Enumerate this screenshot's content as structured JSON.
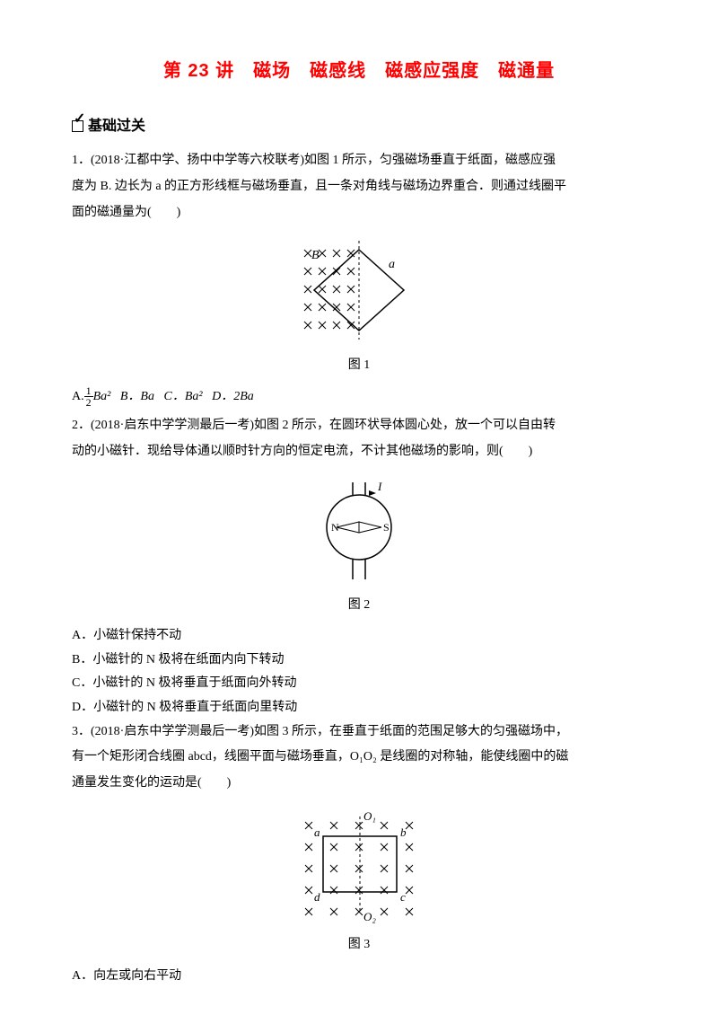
{
  "title": "第 23 讲　磁场　磁感线　磁感应强度　磁通量",
  "section_head": "基础过关",
  "q1": {
    "stem1": "1．(2018·江都中学、扬中中学等六校联考)如图 1 所示，匀强磁场垂直于纸面，磁感应强",
    "stem2": "度为 B. 边长为 a 的正方形线框与磁场垂直，且一条对角线与磁场边界重合．则通过线圈平",
    "stem3": "面的磁通量为(　　)",
    "fig_cap": "图 1",
    "optA_pre": "A.",
    "optA_post": "Ba²",
    "optB": "B．Ba",
    "optC": "C．Ba²",
    "optD": "D．2Ba",
    "frac_n": "1",
    "frac_d": "2"
  },
  "q2": {
    "stem1": "2．(2018·启东中学学测最后一考)如图 2 所示，在圆环状导体圆心处，放一个可以自由转",
    "stem2": "动的小磁针．现给导体通以顺时针方向的恒定电流，不计其他磁场的影响，则(　　)",
    "fig_cap": "图 2",
    "optA": "A．小磁针保持不动",
    "optB": "B．小磁针的 N 极将在纸面内向下转动",
    "optC": "C．小磁针的 N 极将垂直于纸面向外转动",
    "optD": "D．小磁针的 N 极将垂直于纸面向里转动",
    "I": "I",
    "N": "N",
    "S": "S"
  },
  "q3": {
    "stem1": "3．(2018·启东中学学测最后一考)如图 3 所示，在垂直于纸面的范围足够大的匀强磁场中，",
    "stem2": "有一个矩形闭合线圈 abcd，线圈平面与磁场垂直，O₁O₂ 是线圈的对称轴，能使线圈中的磁",
    "stem3": "通量发生变化的运动是(　　)",
    "fig_cap": "图 3",
    "a": "a",
    "b": "b",
    "c": "c",
    "d": "d",
    "O1": "O₁",
    "O2": "O₂",
    "optA": "A．向左或向右平动"
  },
  "fig1": {
    "B": "B",
    "a": "a",
    "bg": "#ffffff",
    "cross_color": "#000000",
    "line_color": "#000000"
  },
  "colors": {
    "title": "#ff0000",
    "text": "#000000",
    "bg": "#ffffff"
  }
}
